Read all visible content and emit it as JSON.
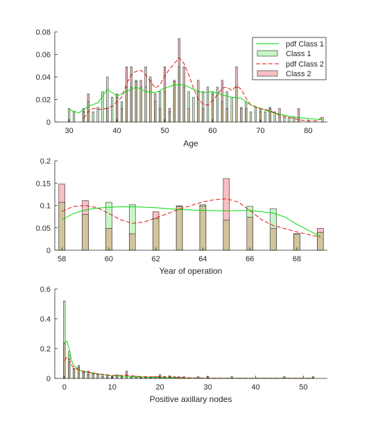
{
  "colors": {
    "class1_pdf": "#00dd00",
    "class1_fill": "#c8f5c8",
    "class2_pdf": "#e01010",
    "class2_fill": "#f8c0c4",
    "overlap_fill": "#d2c49c",
    "axis": "#262626"
  },
  "legend": {
    "pdf1": "pdf Class 1",
    "class1": "Class 1",
    "pdf2": "pdf Class 2",
    "class2": "Class 2"
  },
  "chart_data": [
    {
      "type": "bar",
      "id": "age",
      "xlabel": "Age",
      "ylabel": "",
      "xlim": [
        27,
        84
      ],
      "ylim": [
        0,
        0.08
      ],
      "xticks": [
        30,
        40,
        50,
        60,
        70,
        80
      ],
      "yticks": [
        0,
        0.02,
        0.04,
        0.06,
        0.08
      ],
      "bar_width": 0.35,
      "legend_position": "top-right",
      "categories": [
        30,
        31,
        33,
        34,
        35,
        36,
        37,
        38,
        39,
        40,
        41,
        42,
        43,
        44,
        45,
        46,
        47,
        48,
        49,
        50,
        51,
        52,
        53,
        54,
        55,
        56,
        57,
        58,
        59,
        60,
        61,
        62,
        63,
        64,
        65,
        66,
        67,
        68,
        69,
        70,
        71,
        72,
        73,
        74,
        75,
        76,
        77,
        78,
        83
      ],
      "series": [
        {
          "name": "Class 1",
          "values": [
            0.012,
            0.009,
            0.009,
            0.018,
            0.009,
            0.013,
            0.027,
            0.04,
            0.022,
            0.022,
            0.018,
            0.031,
            0.031,
            0.036,
            0.031,
            0.031,
            0.04,
            0.018,
            0.027,
            0.027,
            0.009,
            0.036,
            0.049,
            0.031,
            0.027,
            0.022,
            0.027,
            0.027,
            0.031,
            0.027,
            0.031,
            0.018,
            0.027,
            0.022,
            0.031,
            0.013,
            0.018,
            0.009,
            0.013,
            0.009,
            0.009,
            0.013,
            0.009,
            0.004,
            0.004,
            0.004,
            0.004,
            0.004,
            0.004
          ]
        },
        {
          "name": "Class 2",
          "values": [
            0,
            0,
            0.012,
            0.025,
            0,
            0,
            0,
            0.012,
            0,
            0.025,
            0.012,
            0.049,
            0.049,
            0.037,
            0.037,
            0.049,
            0.037,
            0.025,
            0.012,
            0.049,
            0.012,
            0.037,
            0.074,
            0.049,
            0.012,
            0,
            0.037,
            0.012,
            0,
            0.025,
            0,
            0.037,
            0.012,
            0,
            0.049,
            0.012,
            0.012,
            0,
            0,
            0.012,
            0,
            0.012,
            0,
            0.012,
            0,
            0,
            0,
            0.012,
            0
          ]
        }
      ],
      "pdf": [
        {
          "name": "pdf Class 1",
          "x": [
            30,
            32,
            34,
            36,
            38,
            40,
            42,
            44,
            46,
            48,
            50,
            52,
            54,
            56,
            58,
            60,
            62,
            64,
            66,
            68,
            70,
            72,
            74,
            76,
            78,
            80,
            83
          ],
          "y": [
            0.011,
            0.008,
            0.014,
            0.017,
            0.029,
            0.023,
            0.027,
            0.031,
            0.027,
            0.026,
            0.03,
            0.033,
            0.033,
            0.029,
            0.026,
            0.027,
            0.024,
            0.022,
            0.021,
            0.015,
            0.012,
            0.009,
            0.007,
            0.005,
            0.004,
            0.003,
            0.002
          ]
        },
        {
          "name": "pdf Class 2",
          "x": [
            33,
            34,
            35,
            37,
            39,
            41,
            42,
            43,
            44,
            45,
            46,
            47,
            48,
            49,
            50,
            51,
            52,
            53,
            54,
            55,
            56,
            57,
            58,
            59,
            60,
            61,
            62,
            63,
            64,
            65,
            66,
            67,
            68,
            70,
            72,
            74,
            76,
            78,
            80,
            82,
            83
          ],
          "y": [
            0.003,
            0.009,
            0.012,
            0.011,
            0.014,
            0.022,
            0.034,
            0.042,
            0.045,
            0.046,
            0.042,
            0.036,
            0.03,
            0.033,
            0.041,
            0.047,
            0.052,
            0.057,
            0.052,
            0.042,
            0.03,
            0.02,
            0.016,
            0.015,
            0.019,
            0.024,
            0.03,
            0.031,
            0.028,
            0.032,
            0.029,
            0.021,
            0.015,
            0.012,
            0.01,
            0.006,
            0.004,
            0.002,
            0.001,
            0.001,
            0.005
          ]
        }
      ]
    },
    {
      "type": "bar",
      "id": "year",
      "xlabel": "Year of operation",
      "ylabel": "",
      "xlim": [
        57.7,
        69.3
      ],
      "ylim": [
        0,
        0.2
      ],
      "xticks": [
        58,
        60,
        62,
        64,
        66,
        68
      ],
      "yticks": [
        0,
        0.05,
        0.1,
        0.15,
        0.2
      ],
      "bar_width": 0.26,
      "categories": [
        58,
        59,
        60,
        61,
        62,
        63,
        64,
        65,
        66,
        67,
        68,
        69
      ],
      "series": [
        {
          "name": "Class 1",
          "values": [
            0.107,
            0.08,
            0.107,
            0.102,
            0.071,
            0.098,
            0.102,
            0.067,
            0.098,
            0.093,
            0.036,
            0.04
          ]
        },
        {
          "name": "Class 2",
          "values": [
            0.148,
            0.111,
            0.049,
            0.037,
            0.086,
            0.099,
            0.099,
            0.16,
            0.074,
            0.049,
            0.037,
            0.049
          ]
        }
      ],
      "pdf": [
        {
          "name": "pdf Class 1",
          "x": [
            58,
            58.5,
            59,
            59.5,
            60,
            60.5,
            61,
            62,
            63,
            64,
            65,
            66,
            67,
            67.5,
            68,
            68.5,
            69
          ],
          "y": [
            0.068,
            0.082,
            0.09,
            0.094,
            0.096,
            0.097,
            0.097,
            0.095,
            0.091,
            0.089,
            0.088,
            0.089,
            0.083,
            0.074,
            0.058,
            0.044,
            0.031
          ]
        },
        {
          "name": "pdf Class 2",
          "x": [
            58,
            58.5,
            59,
            59.5,
            60,
            60.5,
            61,
            61.5,
            62,
            63,
            64,
            64.5,
            65,
            65.5,
            66,
            66.5,
            67,
            67.5,
            68,
            68.5,
            69
          ],
          "y": [
            0.087,
            0.098,
            0.1,
            0.095,
            0.082,
            0.068,
            0.06,
            0.063,
            0.072,
            0.092,
            0.108,
            0.113,
            0.115,
            0.108,
            0.089,
            0.068,
            0.055,
            0.048,
            0.041,
            0.035,
            0.029
          ]
        }
      ]
    },
    {
      "type": "bar",
      "id": "nodes",
      "xlabel": "Positive axillary nodes",
      "ylabel": "",
      "xlim": [
        -2,
        55
      ],
      "ylim": [
        0,
        0.6
      ],
      "xticks": [
        0,
        10,
        20,
        30,
        40,
        50
      ],
      "yticks": [
        0,
        0.2,
        0.4,
        0.6
      ],
      "bar_width": 0.35,
      "categories": [
        0,
        1,
        2,
        3,
        4,
        5,
        6,
        7,
        8,
        9,
        10,
        11,
        12,
        13,
        14,
        15,
        16,
        17,
        18,
        19,
        20,
        21,
        22,
        23,
        24,
        25,
        28,
        30,
        35,
        46,
        52
      ],
      "series": [
        {
          "name": "Class 1",
          "values": [
            0.52,
            0.182,
            0.067,
            0.071,
            0.04,
            0.027,
            0.031,
            0.027,
            0.027,
            0.009,
            0.009,
            0.018,
            0.004,
            0.022,
            0.009,
            0.009,
            0.004,
            0.004,
            0.004,
            0.004,
            0.009,
            0.004,
            0.018,
            0.004,
            0.004,
            0.004,
            0.004,
            0.004,
            0.004,
            0.004,
            0.004
          ]
        },
        {
          "name": "Class 2",
          "values": [
            0.235,
            0.111,
            0.062,
            0.086,
            0.049,
            0.049,
            0.037,
            0.025,
            0.012,
            0.025,
            0.012,
            0.025,
            0.012,
            0.049,
            0.012,
            0.012,
            0.012,
            0.012,
            0.012,
            0.012,
            0.025,
            0.012,
            0.012,
            0.012,
            0.012,
            0.012,
            0.012,
            0.012,
            0.012,
            0.012,
            0.012
          ]
        }
      ],
      "pdf": [
        {
          "name": "pdf Class 1",
          "x": [
            0,
            0.5,
            1,
            1.5,
            2,
            3,
            4,
            5,
            6,
            7,
            8,
            9,
            10,
            12,
            14,
            16,
            18,
            20,
            22,
            24,
            26,
            28,
            30,
            35,
            40,
            45,
            50,
            52
          ],
          "y": [
            0.24,
            0.25,
            0.2,
            0.12,
            0.085,
            0.06,
            0.045,
            0.04,
            0.035,
            0.03,
            0.026,
            0.022,
            0.018,
            0.015,
            0.012,
            0.009,
            0.007,
            0.005,
            0.004,
            0.003,
            0.002,
            0.002,
            0.001,
            0.001,
            0.001,
            0.001,
            0.001,
            0.001
          ]
        },
        {
          "name": "pdf Class 2",
          "x": [
            0,
            0.5,
            1,
            1.5,
            2,
            3,
            4,
            5,
            6,
            7,
            8,
            9,
            10,
            11,
            12,
            13,
            14,
            16,
            18,
            20,
            22,
            24,
            26,
            28,
            30,
            35,
            40,
            45,
            50,
            52
          ],
          "y": [
            0.12,
            0.14,
            0.13,
            0.09,
            0.07,
            0.058,
            0.048,
            0.042,
            0.036,
            0.031,
            0.026,
            0.022,
            0.02,
            0.019,
            0.02,
            0.022,
            0.018,
            0.012,
            0.01,
            0.011,
            0.009,
            0.006,
            0.004,
            0.003,
            0.002,
            0.001,
            0.001,
            0.001,
            0.001,
            0.001
          ]
        }
      ]
    }
  ]
}
